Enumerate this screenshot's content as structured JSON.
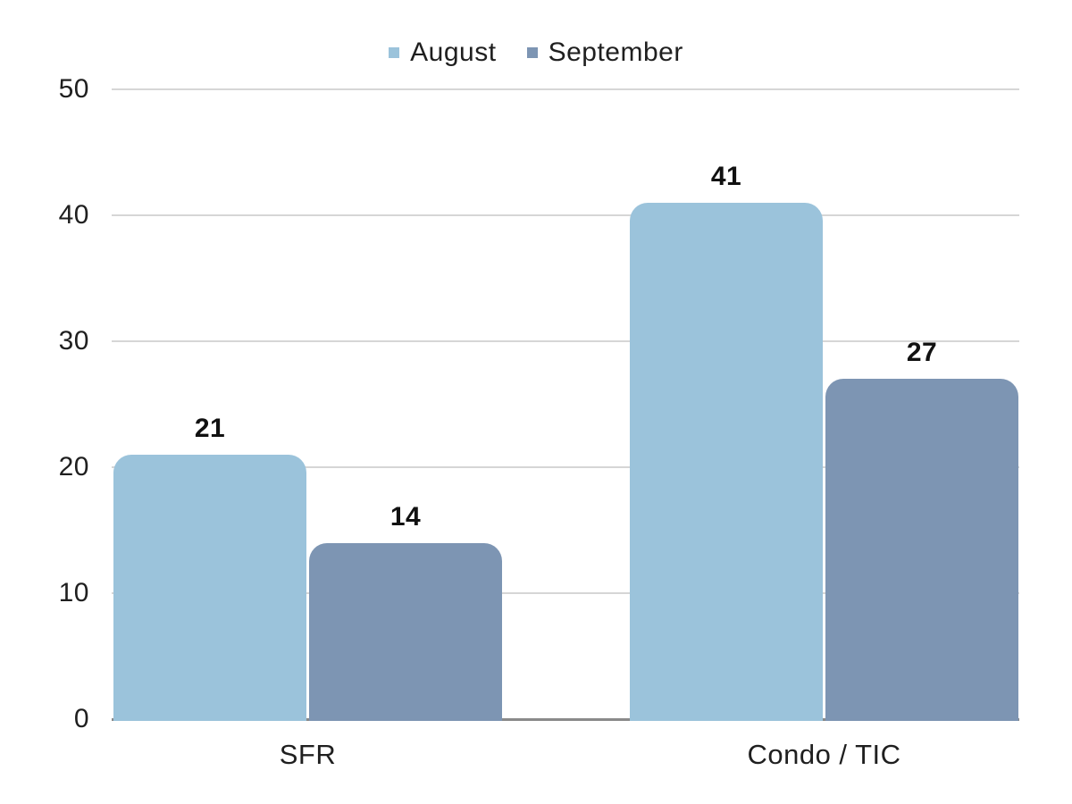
{
  "chart_data": {
    "type": "bar",
    "title": "",
    "categories": [
      "SFR",
      "Condo / TIC"
    ],
    "series": [
      {
        "name": "August",
        "color": "#9BC3DB",
        "values": [
          21,
          41
        ]
      },
      {
        "name": "September",
        "color": "#7D95B3",
        "values": [
          14,
          27
        ]
      }
    ],
    "xlabel": "",
    "ylabel": "",
    "ylim": [
      0,
      50
    ],
    "yticks": [
      0,
      10,
      20,
      30,
      40,
      50
    ],
    "grid": true,
    "legend_position": "top-center",
    "value_labels_shown": true
  },
  "colors": {
    "background": "#ffffff",
    "text": "#1f1f1f",
    "gridline": "#d6d6d6",
    "zero_line": "#8a8a8a"
  }
}
